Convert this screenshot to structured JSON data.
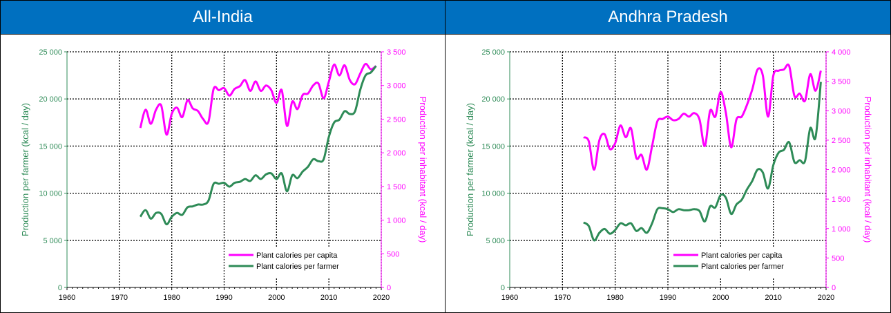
{
  "colors": {
    "header_bg": "#0070c0",
    "green": "#2e8b57",
    "magenta": "#ff00ff"
  },
  "legend": {
    "capita": "Plant calories per capita",
    "farmer": "Plant calories per farmer"
  },
  "axes": {
    "left_label": "Production per farmer (kcal / day)",
    "right_label": "Production per inhabitant (kcal / day)"
  },
  "panels": [
    {
      "title": "All-India"
    },
    {
      "title": "Andhra Pradesh"
    }
  ],
  "chart_data": [
    {
      "type": "line",
      "title": "All-India",
      "xlabel": "",
      "ylabel": "Production per farmer (kcal / day)",
      "y2label": "Production per inhabitant (kcal / day)",
      "xlim": [
        1960,
        2020
      ],
      "ylim": [
        0,
        25000
      ],
      "y2lim": [
        0,
        3500
      ],
      "xticks": [
        "1960",
        "1970",
        "1980",
        "1990",
        "2000",
        "2010",
        "2020"
      ],
      "yticks": [
        "0",
        "5 000",
        "10 000",
        "15 000",
        "20 000",
        "25 000"
      ],
      "y2ticks": [
        "0",
        "500",
        "1 000",
        "1 500",
        "2 000",
        "2 500",
        "3 000",
        "3 500"
      ],
      "grid": true,
      "legend_position": "bottom-right",
      "series": [
        {
          "name": "Plant calories per capita",
          "axis": "right",
          "x": [
            1974,
            1975,
            1976,
            1977,
            1978,
            1979,
            1980,
            1981,
            1982,
            1983,
            1984,
            1985,
            1986,
            1987,
            1988,
            1989,
            1990,
            1991,
            1992,
            1993,
            1994,
            1995,
            1996,
            1997,
            1998,
            1999,
            2000,
            2001,
            2002,
            2003,
            2004,
            2005,
            2006,
            2007,
            2008,
            2009,
            2010,
            2011,
            2012,
            2013,
            2014,
            2015,
            2016,
            2017,
            2018,
            2019
          ],
          "y": [
            2370,
            2640,
            2430,
            2640,
            2700,
            2270,
            2580,
            2670,
            2530,
            2780,
            2660,
            2620,
            2500,
            2460,
            2950,
            2930,
            2960,
            2850,
            2950,
            2990,
            3080,
            2920,
            3060,
            2920,
            3000,
            2930,
            2740,
            2930,
            2400,
            2760,
            2650,
            2860,
            2880,
            3000,
            3030,
            2810,
            3060,
            3310,
            3150,
            3300,
            3080,
            3020,
            3180,
            3320,
            3240,
            3290
          ]
        },
        {
          "name": "Plant calories per farmer",
          "axis": "left",
          "x": [
            1974,
            1975,
            1976,
            1977,
            1978,
            1979,
            1980,
            1981,
            1982,
            1983,
            1984,
            1985,
            1986,
            1987,
            1988,
            1989,
            1990,
            1991,
            1992,
            1993,
            1994,
            1995,
            1996,
            1997,
            1998,
            1999,
            2000,
            2001,
            2002,
            2003,
            2004,
            2005,
            2006,
            2007,
            2008,
            2009,
            2010,
            2011,
            2012,
            2013,
            2014,
            2015,
            2016,
            2017,
            2018,
            2019
          ],
          "y": [
            7500,
            8200,
            7300,
            7900,
            7800,
            6700,
            7500,
            7900,
            7700,
            8500,
            8600,
            8800,
            8800,
            9200,
            11000,
            11000,
            11100,
            10700,
            11100,
            11200,
            11500,
            11300,
            11900,
            11500,
            12000,
            12100,
            11500,
            12100,
            10200,
            11900,
            11600,
            12300,
            12800,
            13600,
            13400,
            13600,
            16000,
            17500,
            17800,
            18700,
            18400,
            18700,
            21000,
            22500,
            22800,
            23500
          ]
        }
      ]
    },
    {
      "type": "line",
      "title": "Andhra Pradesh",
      "xlabel": "",
      "ylabel": "Production per farmer (kcal / day)",
      "y2label": "Production per inhabitant (kcal / day)",
      "xlim": [
        1960,
        2020
      ],
      "ylim": [
        0,
        25000
      ],
      "y2lim": [
        0,
        4000
      ],
      "xticks": [
        "1960",
        "1970",
        "1980",
        "1990",
        "2000",
        "2010",
        "2020"
      ],
      "yticks": [
        "0",
        "5 000",
        "10 000",
        "15 000",
        "20 000",
        "25 000"
      ],
      "y2ticks": [
        "0",
        "500",
        "1 000",
        "1 500",
        "2 000",
        "2 500",
        "3 000",
        "3 500",
        "4 000"
      ],
      "grid": true,
      "legend_position": "bottom-right",
      "series": [
        {
          "name": "Plant calories per capita",
          "axis": "right",
          "x": [
            1974,
            1975,
            1976,
            1977,
            1978,
            1979,
            1980,
            1981,
            1982,
            1983,
            1984,
            1985,
            1986,
            1987,
            1988,
            1989,
            1990,
            1991,
            1992,
            1993,
            1994,
            1995,
            1996,
            1997,
            1998,
            1999,
            2000,
            2001,
            2002,
            2003,
            2004,
            2005,
            2006,
            2007,
            2008,
            2009,
            2010,
            2011,
            2012,
            2013,
            2014,
            2015,
            2016,
            2017,
            2018,
            2019
          ],
          "y": [
            2550,
            2480,
            2000,
            2500,
            2600,
            2350,
            2450,
            2750,
            2550,
            2700,
            2200,
            2250,
            2000,
            2400,
            2820,
            2860,
            2900,
            2840,
            2860,
            2950,
            2900,
            2960,
            2850,
            2400,
            3000,
            2900,
            3320,
            2960,
            2380,
            2850,
            2900,
            3100,
            3360,
            3700,
            3600,
            2900,
            3600,
            3680,
            3700,
            3760,
            3250,
            3290,
            3170,
            3620,
            3340,
            3680
          ]
        },
        {
          "name": "Plant calories per farmer",
          "axis": "left",
          "x": [
            1974,
            1975,
            1976,
            1977,
            1978,
            1979,
            1980,
            1981,
            1982,
            1983,
            1984,
            1985,
            1986,
            1987,
            1988,
            1989,
            1990,
            1991,
            1992,
            1993,
            1994,
            1995,
            1996,
            1997,
            1998,
            1999,
            2000,
            2001,
            2002,
            2003,
            2004,
            2005,
            2006,
            2007,
            2008,
            2009,
            2010,
            2011,
            2012,
            2013,
            2014,
            2015,
            2016,
            2017,
            2018,
            2019
          ],
          "y": [
            6900,
            6500,
            5000,
            5800,
            6200,
            5700,
            6100,
            6800,
            6600,
            6800,
            6000,
            6300,
            5800,
            6800,
            8300,
            8400,
            8300,
            8000,
            8300,
            8200,
            8200,
            8300,
            8100,
            7000,
            8600,
            8500,
            9800,
            9500,
            7800,
            8800,
            9300,
            10400,
            11300,
            12500,
            12200,
            10500,
            13000,
            14300,
            14600,
            15400,
            13300,
            13500,
            13400,
            16900,
            15900,
            21800
          ]
        }
      ]
    }
  ]
}
